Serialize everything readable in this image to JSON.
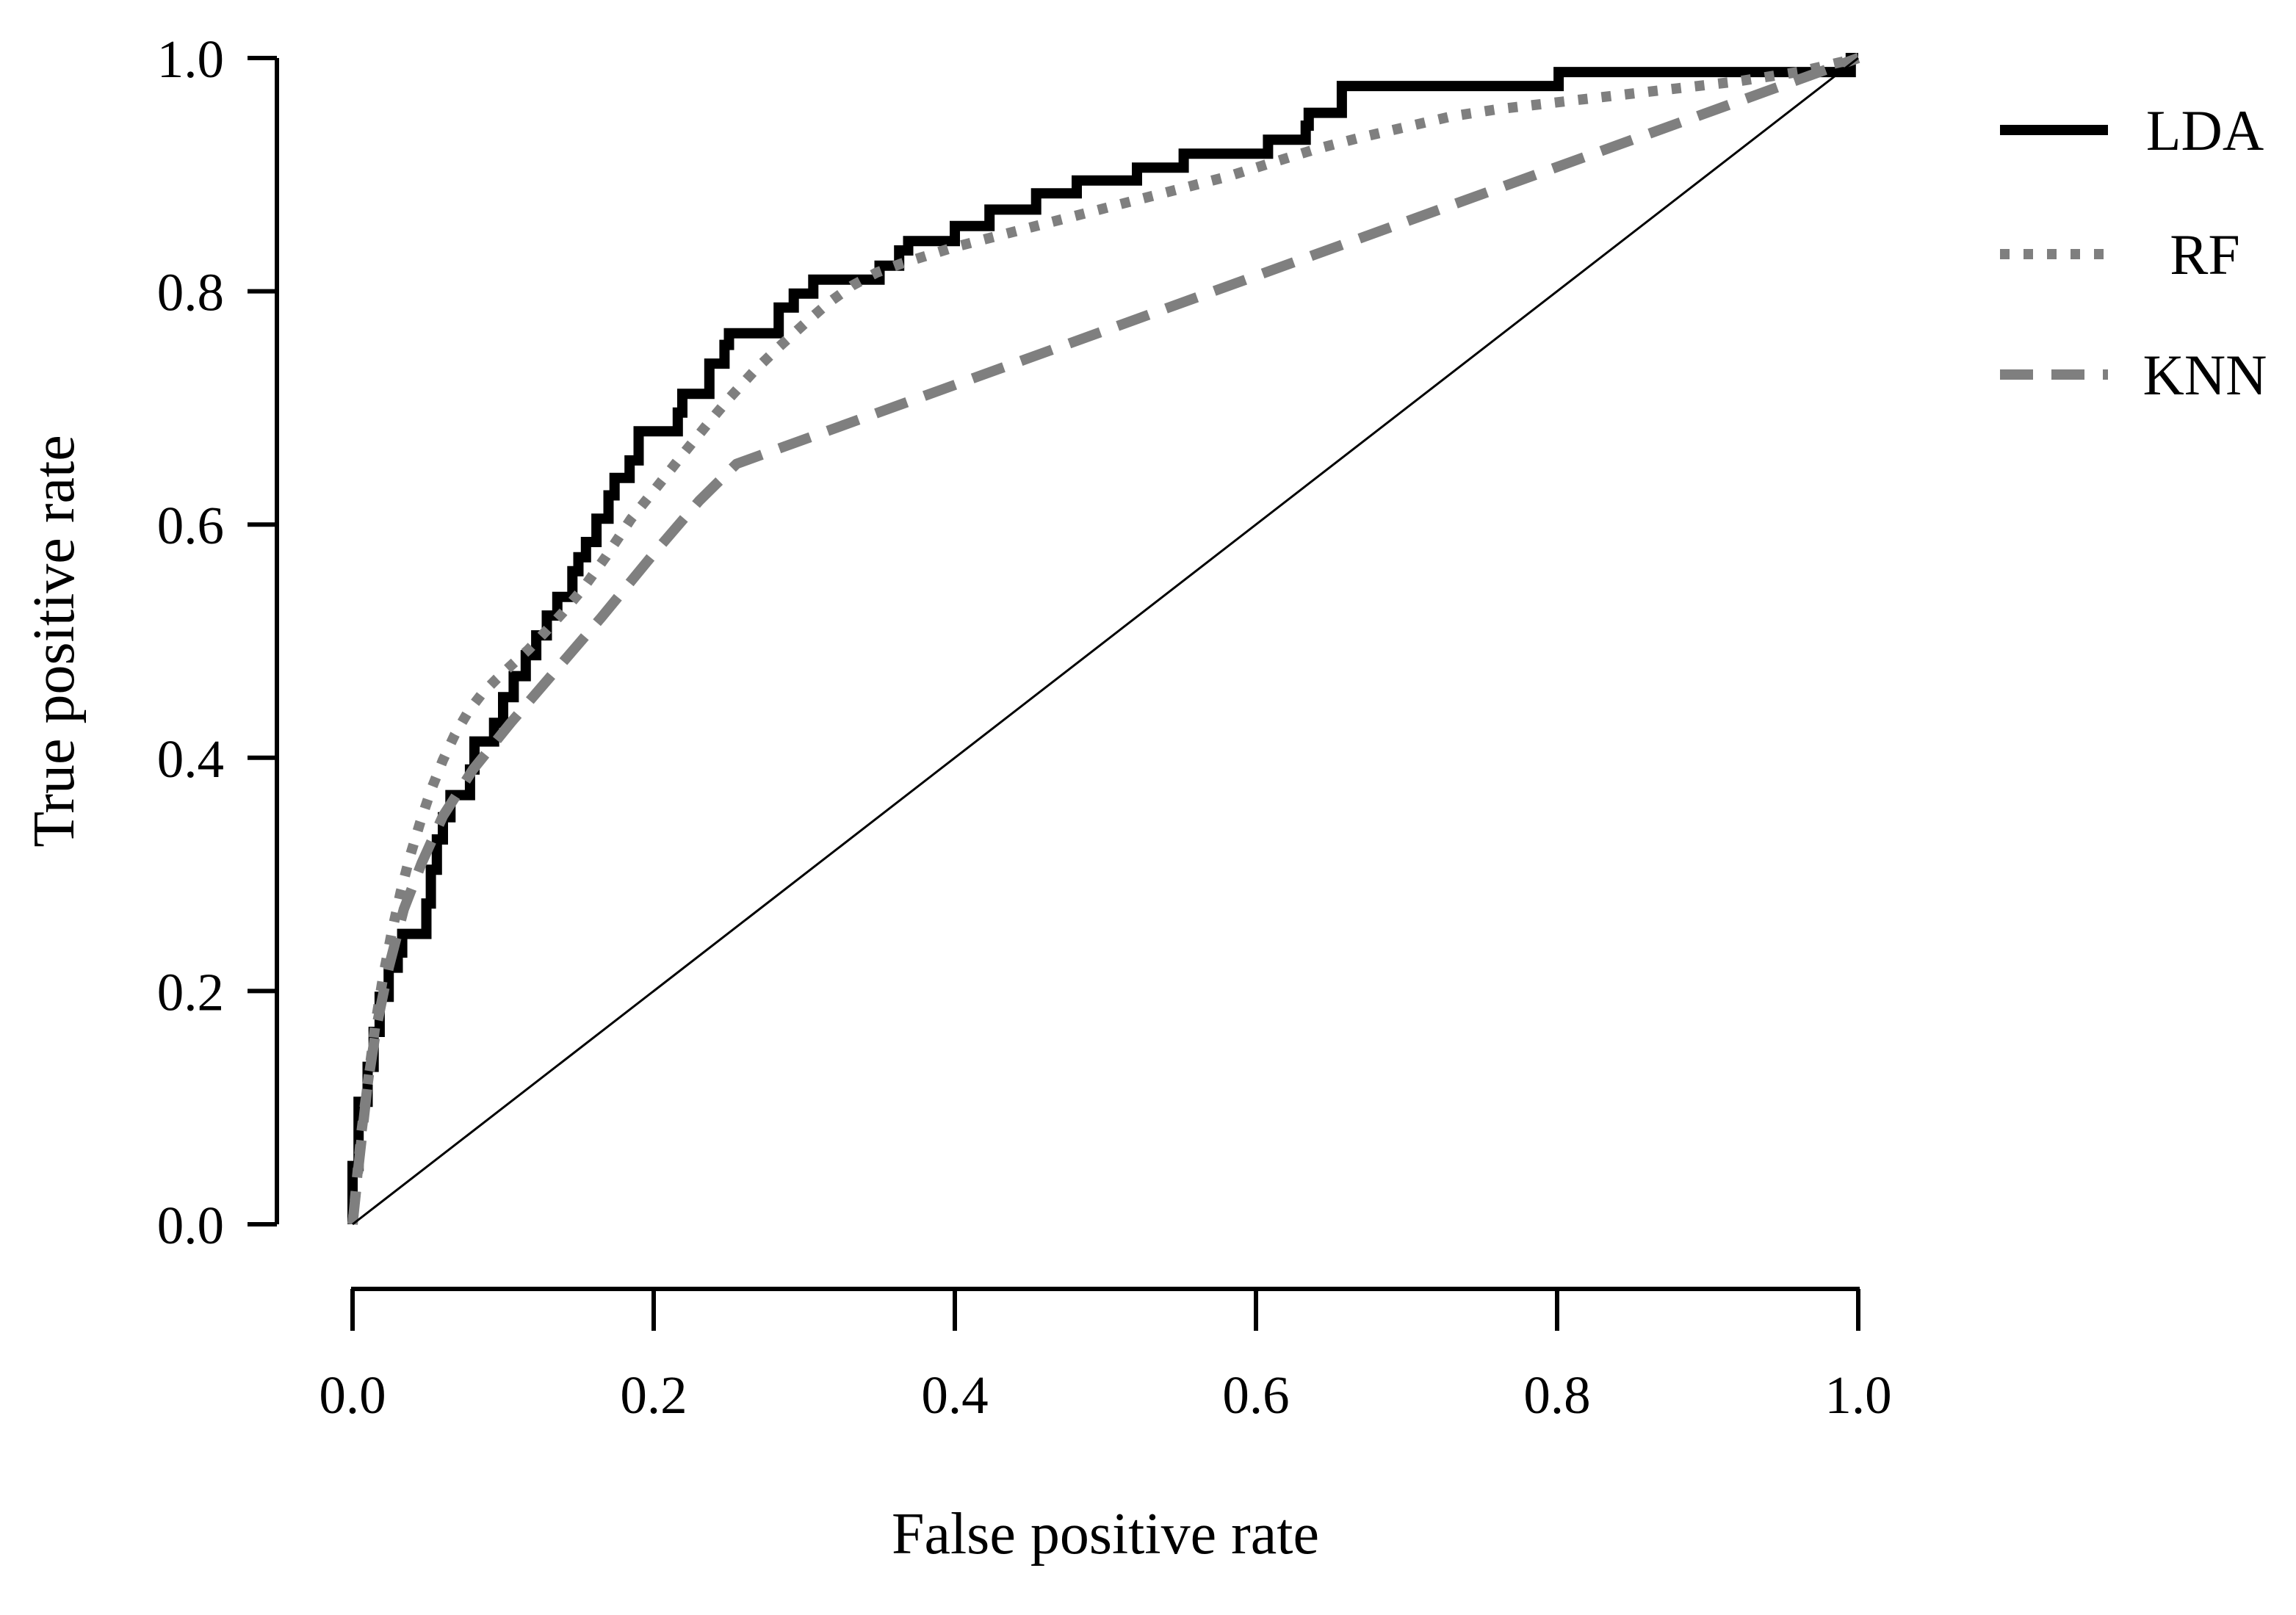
{
  "chart_data": {
    "type": "line",
    "title": "",
    "xlabel": "False positive rate",
    "ylabel": "True positive rate",
    "xlim": [
      0,
      1
    ],
    "ylim": [
      0,
      1
    ],
    "grid": false,
    "legend_position": "top-right",
    "xticks": {
      "values": [
        0.0,
        0.2,
        0.4,
        0.6,
        0.8,
        1.0
      ],
      "labels": [
        "0.0",
        "0.2",
        "0.4",
        "0.6",
        "0.8",
        "1.0"
      ]
    },
    "yticks": {
      "values": [
        0.0,
        0.2,
        0.4,
        0.6,
        0.8,
        1.0
      ],
      "labels": [
        "0.0",
        "0.2",
        "0.4",
        "0.6",
        "0.8",
        "1.0"
      ]
    },
    "series": [
      {
        "name": "LDA",
        "style": "solid",
        "color": "#000000",
        "in_legend": true,
        "points": [
          [
            0,
            0
          ],
          [
            0,
            0.05
          ],
          [
            0.004,
            0.05
          ],
          [
            0.004,
            0.105
          ],
          [
            0.01,
            0.105
          ],
          [
            0.01,
            0.135
          ],
          [
            0.014,
            0.135
          ],
          [
            0.014,
            0.165
          ],
          [
            0.018,
            0.165
          ],
          [
            0.018,
            0.195
          ],
          [
            0.024,
            0.195
          ],
          [
            0.024,
            0.22
          ],
          [
            0.03,
            0.22
          ],
          [
            0.03,
            0.233
          ],
          [
            0.033,
            0.233
          ],
          [
            0.033,
            0.249
          ],
          [
            0.049,
            0.249
          ],
          [
            0.049,
            0.275
          ],
          [
            0.052,
            0.275
          ],
          [
            0.052,
            0.304
          ],
          [
            0.056,
            0.304
          ],
          [
            0.056,
            0.33
          ],
          [
            0.06,
            0.33
          ],
          [
            0.06,
            0.349
          ],
          [
            0.065,
            0.349
          ],
          [
            0.065,
            0.368
          ],
          [
            0.078,
            0.368
          ],
          [
            0.078,
            0.39
          ],
          [
            0.081,
            0.39
          ],
          [
            0.081,
            0.414
          ],
          [
            0.094,
            0.414
          ],
          [
            0.094,
            0.43
          ],
          [
            0.1,
            0.43
          ],
          [
            0.1,
            0.452
          ],
          [
            0.107,
            0.452
          ],
          [
            0.107,
            0.47
          ],
          [
            0.115,
            0.47
          ],
          [
            0.115,
            0.488
          ],
          [
            0.122,
            0.488
          ],
          [
            0.122,
            0.505
          ],
          [
            0.129,
            0.505
          ],
          [
            0.129,
            0.522
          ],
          [
            0.136,
            0.522
          ],
          [
            0.136,
            0.538
          ],
          [
            0.146,
            0.538
          ],
          [
            0.146,
            0.56
          ],
          [
            0.15,
            0.56
          ],
          [
            0.15,
            0.572
          ],
          [
            0.155,
            0.572
          ],
          [
            0.155,
            0.585
          ],
          [
            0.162,
            0.585
          ],
          [
            0.162,
            0.605
          ],
          [
            0.17,
            0.605
          ],
          [
            0.17,
            0.625
          ],
          [
            0.174,
            0.625
          ],
          [
            0.174,
            0.64
          ],
          [
            0.184,
            0.64
          ],
          [
            0.184,
            0.655
          ],
          [
            0.19,
            0.655
          ],
          [
            0.19,
            0.68
          ],
          [
            0.216,
            0.68
          ],
          [
            0.216,
            0.696
          ],
          [
            0.219,
            0.696
          ],
          [
            0.219,
            0.712
          ],
          [
            0.237,
            0.712
          ],
          [
            0.237,
            0.738
          ],
          [
            0.247,
            0.738
          ],
          [
            0.247,
            0.754
          ],
          [
            0.25,
            0.754
          ],
          [
            0.25,
            0.764
          ],
          [
            0.283,
            0.764
          ],
          [
            0.283,
            0.786
          ],
          [
            0.293,
            0.786
          ],
          [
            0.293,
            0.798
          ],
          [
            0.306,
            0.798
          ],
          [
            0.306,
            0.81
          ],
          [
            0.35,
            0.81
          ],
          [
            0.35,
            0.822
          ],
          [
            0.363,
            0.822
          ],
          [
            0.363,
            0.835
          ],
          [
            0.369,
            0.835
          ],
          [
            0.369,
            0.843
          ],
          [
            0.4,
            0.843
          ],
          [
            0.4,
            0.856
          ],
          [
            0.423,
            0.856
          ],
          [
            0.423,
            0.87
          ],
          [
            0.454,
            0.87
          ],
          [
            0.454,
            0.884
          ],
          [
            0.481,
            0.884
          ],
          [
            0.481,
            0.895
          ],
          [
            0.521,
            0.895
          ],
          [
            0.521,
            0.906
          ],
          [
            0.552,
            0.906
          ],
          [
            0.552,
            0.918
          ],
          [
            0.608,
            0.918
          ],
          [
            0.608,
            0.93
          ],
          [
            0.633,
            0.93
          ],
          [
            0.633,
            0.942
          ],
          [
            0.635,
            0.942
          ],
          [
            0.635,
            0.953
          ],
          [
            0.657,
            0.953
          ],
          [
            0.657,
            0.976
          ],
          [
            0.801,
            0.976
          ],
          [
            0.801,
            0.988
          ],
          [
            0.995,
            0.988
          ],
          [
            0.995,
            1
          ],
          [
            1,
            1
          ]
        ]
      },
      {
        "name": "RF",
        "style": "dotted",
        "color": "#7f7f7f",
        "in_legend": true,
        "points": [
          [
            0,
            0
          ],
          [
            0.003,
            0.04
          ],
          [
            0.006,
            0.08
          ],
          [
            0.01,
            0.12
          ],
          [
            0.015,
            0.17
          ],
          [
            0.02,
            0.21
          ],
          [
            0.026,
            0.25
          ],
          [
            0.032,
            0.285
          ],
          [
            0.038,
            0.315
          ],
          [
            0.045,
            0.345
          ],
          [
            0.052,
            0.372
          ],
          [
            0.06,
            0.398
          ],
          [
            0.068,
            0.42
          ],
          [
            0.077,
            0.44
          ],
          [
            0.086,
            0.455
          ],
          [
            0.096,
            0.468
          ],
          [
            0.106,
            0.48
          ],
          [
            0.117,
            0.493
          ],
          [
            0.128,
            0.508
          ],
          [
            0.14,
            0.525
          ],
          [
            0.153,
            0.545
          ],
          [
            0.168,
            0.572
          ],
          [
            0.185,
            0.605
          ],
          [
            0.202,
            0.632
          ],
          [
            0.218,
            0.658
          ],
          [
            0.235,
            0.685
          ],
          [
            0.25,
            0.708
          ],
          [
            0.267,
            0.732
          ],
          [
            0.283,
            0.752
          ],
          [
            0.3,
            0.772
          ],
          [
            0.316,
            0.79
          ],
          [
            0.332,
            0.805
          ],
          [
            0.348,
            0.816
          ],
          [
            0.365,
            0.824
          ],
          [
            0.38,
            0.83
          ],
          [
            0.4,
            0.838
          ],
          [
            0.43,
            0.848
          ],
          [
            0.46,
            0.858
          ],
          [
            0.49,
            0.868
          ],
          [
            0.52,
            0.878
          ],
          [
            0.55,
            0.888
          ],
          [
            0.58,
            0.898
          ],
          [
            0.61,
            0.91
          ],
          [
            0.64,
            0.922
          ],
          [
            0.67,
            0.932
          ],
          [
            0.7,
            0.941
          ],
          [
            0.73,
            0.95
          ],
          [
            0.76,
            0.956
          ],
          [
            0.8,
            0.962
          ],
          [
            0.84,
            0.968
          ],
          [
            0.88,
            0.974
          ],
          [
            0.92,
            0.98
          ],
          [
            0.96,
            0.988
          ],
          [
            1,
            1
          ]
        ]
      },
      {
        "name": "KNN",
        "style": "dashed",
        "color": "#7f7f7f",
        "in_legend": true,
        "points": [
          [
            0,
            0
          ],
          [
            0.004,
            0.05
          ],
          [
            0.01,
            0.12
          ],
          [
            0.016,
            0.17
          ],
          [
            0.024,
            0.22
          ],
          [
            0.034,
            0.27
          ],
          [
            0.046,
            0.31
          ],
          [
            0.06,
            0.35
          ],
          [
            0.08,
            0.39
          ],
          [
            0.105,
            0.43
          ],
          [
            0.135,
            0.475
          ],
          [
            0.165,
            0.52
          ],
          [
            0.2,
            0.575
          ],
          [
            0.23,
            0.62
          ],
          [
            0.255,
            0.652
          ],
          [
            1,
            1
          ]
        ]
      },
      {
        "name": "chance",
        "style": "thin",
        "color": "#000000",
        "in_legend": false,
        "points": [
          [
            0,
            0
          ],
          [
            1,
            1
          ]
        ]
      }
    ]
  },
  "legend": {
    "items": [
      "LDA",
      "RF",
      "KNN"
    ]
  }
}
